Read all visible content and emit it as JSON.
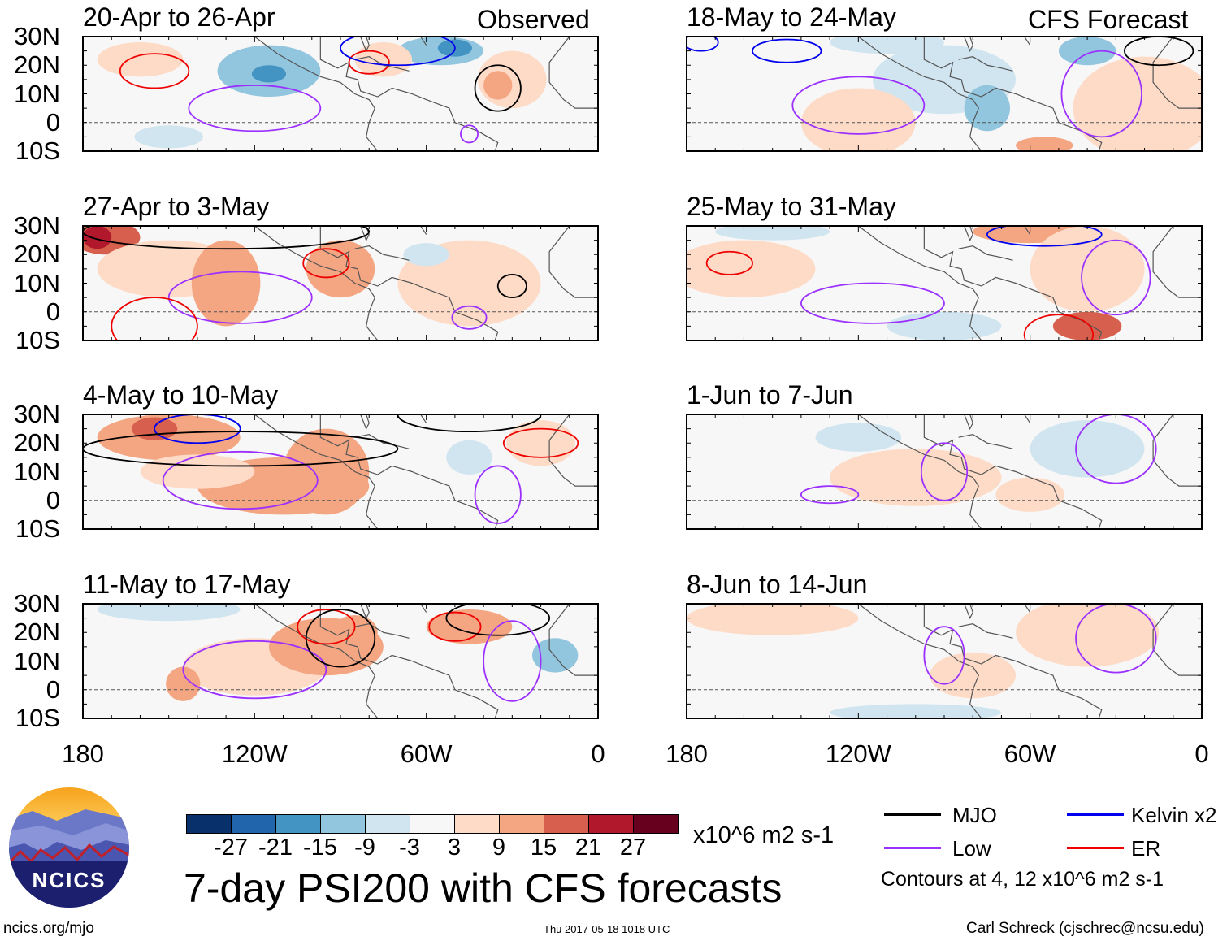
{
  "header": {
    "observed_label": "Observed",
    "forecast_label": "CFS Forecast"
  },
  "panels_observed": [
    {
      "title": "20-Apr to 26-Apr"
    },
    {
      "title": "27-Apr to 3-May"
    },
    {
      "title": "4-May to 10-May"
    },
    {
      "title": "11-May to 17-May"
    }
  ],
  "panels_forecast": [
    {
      "title": "18-May to 24-May"
    },
    {
      "title": "25-May to 31-May"
    },
    {
      "title": "1-Jun to 7-Jun"
    },
    {
      "title": "8-Jun to 14-Jun"
    }
  ],
  "chart_data": {
    "type": "heatmap",
    "title": "7-day PSI200 with CFS forecasts",
    "lat_ticks": [
      "30N",
      "20N",
      "10N",
      "0",
      "10S"
    ],
    "lon_ticks": [
      "180",
      "120W",
      "60W",
      "0"
    ],
    "lat_range": [
      -10,
      30
    ],
    "lon_range": [
      -180,
      0
    ],
    "colorbar": {
      "labels": [
        "-27",
        "-21",
        "-15",
        "-9",
        "-3",
        "3",
        "9",
        "15",
        "21",
        "27"
      ],
      "colors": [
        "#08306b",
        "#2166ac",
        "#4393c3",
        "#92c5de",
        "#d1e5f0",
        "#f7f7f7",
        "#fddbc7",
        "#f4a582",
        "#d6604d",
        "#b2182b",
        "#67001f"
      ],
      "units": "x10^6 m2 s-1"
    },
    "legend": [
      {
        "label": "MJO",
        "color": "#000000"
      },
      {
        "label": "Kelvin x2",
        "color": "#0000ee"
      },
      {
        "label": "Low",
        "color": "#9b30ff"
      },
      {
        "label": "ER",
        "color": "#ee0000"
      }
    ],
    "contour_note": "Contours at 4, 12 x10^6 m2 s-1"
  },
  "footer": {
    "url": "ncics.org/mjo",
    "timestamp": "Thu 2017-05-18 1018 UTC",
    "author": "Carl Schreck (cjschrec@ncsu.edu)",
    "logo_text": "NCICS"
  }
}
